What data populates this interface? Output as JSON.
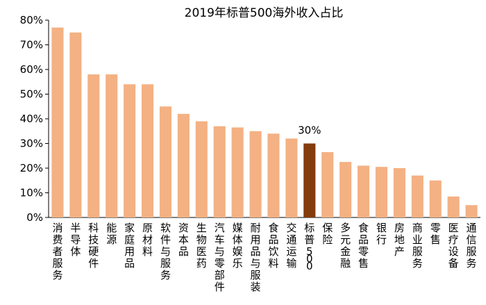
{
  "chart_data": {
    "type": "bar",
    "title": "2019年标普500海外收入占比",
    "xlabel": "",
    "ylabel": "",
    "ylim": [
      0,
      80
    ],
    "yticks": [
      "0%",
      "10%",
      "20%",
      "30%",
      "40%",
      "50%",
      "60%",
      "70%",
      "80%"
    ],
    "grid": false,
    "legend": "none",
    "categories": [
      "消费者服务",
      "半导体",
      "科技硬件",
      "能源",
      "家庭用品",
      "原材料",
      "软件与服务",
      "资本品",
      "生物医药",
      "汽车与零部件",
      "媒体娱乐",
      "耐用品与服装",
      "食品饮料",
      "交通运输",
      "标普500",
      "保险",
      "多元金融",
      "食品零售",
      "银行",
      "房地产",
      "商业服务",
      "零售",
      "医疗设备",
      "通信服务"
    ],
    "values": [
      77,
      75,
      58,
      58,
      54,
      54,
      45,
      42,
      39,
      37,
      36.5,
      35,
      34,
      32,
      30,
      26.5,
      22.5,
      21,
      20.5,
      20,
      17,
      15,
      8.5,
      5
    ],
    "highlight_index": 14,
    "highlight_label": "30%",
    "bar_color": "#F4B183",
    "highlight_color": "#843C0C",
    "axis_color": "#000000"
  }
}
